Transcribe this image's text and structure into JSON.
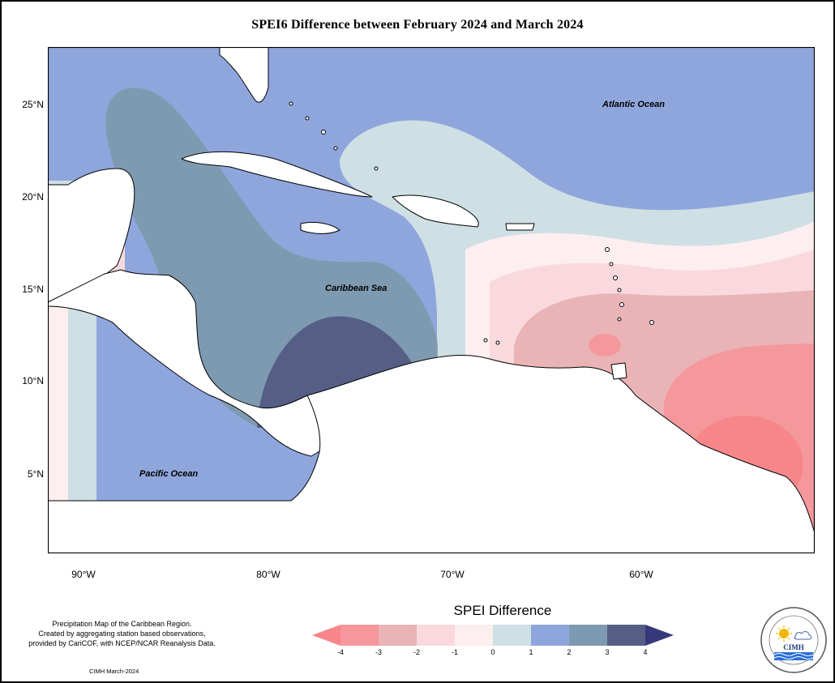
{
  "title": "SPEI6 Difference between February 2024 and March 2024",
  "ocean_labels": {
    "atlantic": "Atlantic Ocean",
    "caribbean": "Caribbean Sea",
    "pacific": "Pacific Ocean"
  },
  "axes": {
    "latitude_ticks": [
      "25°N",
      "20°N",
      "15°N",
      "10°N",
      "5°N"
    ],
    "longitude_ticks": [
      "90°W",
      "80°W",
      "70°W",
      "60°W"
    ]
  },
  "legend": {
    "title": "SPEI Difference",
    "ticks": [
      "-4",
      "-3",
      "-2",
      "-1",
      "0",
      "1",
      "2",
      "3",
      "4"
    ],
    "colors": [
      "#f7868a",
      "#eab4b7",
      "#f9d9dd",
      "#fdeeef",
      "#cfe0e5",
      "#8fa6dd",
      "#7e9ab0",
      "#555f86",
      "#36387a"
    ]
  },
  "info_text": {
    "line1": "Precipitation Map of the Caribbean Region.",
    "line2": "Created by aggregating station based observations,",
    "line3": "provided by CariCOF, with NCEP/NCAR Reanalysis Data."
  },
  "credit": "CIMH March-2024",
  "logo": {
    "text": "CIMH",
    "ring_text": "Caribbean Institute for Meteorology and Hydrology"
  },
  "icons": [
    "sun-icon",
    "cloud-icon",
    "waves-icon"
  ]
}
